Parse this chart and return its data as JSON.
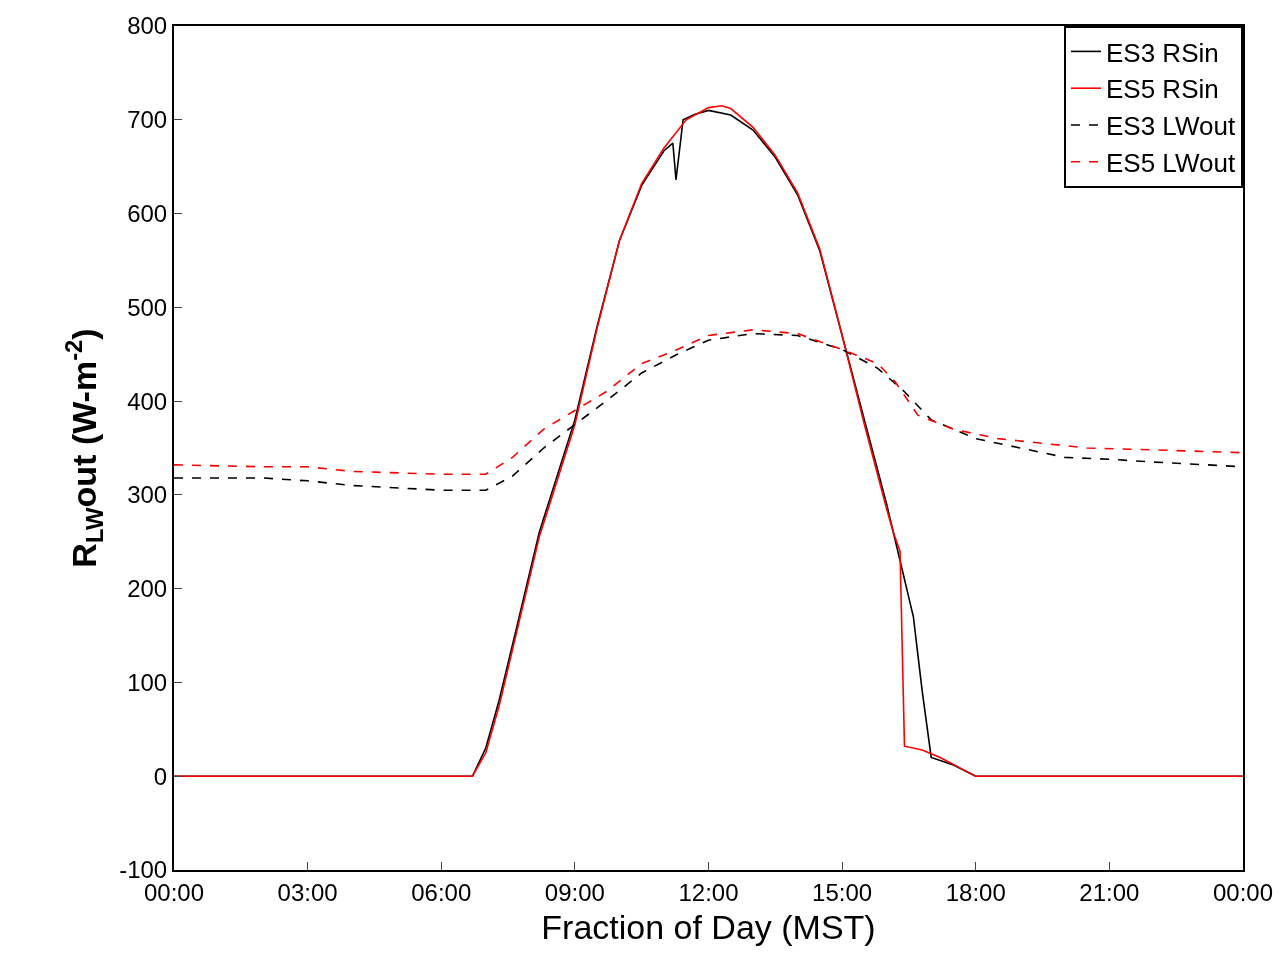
{
  "chart_data": {
    "type": "line",
    "xlabel": "Fraction of Day (MST)",
    "ylabel": "R$_{LW}$out (W-m$^{-2}$)",
    "xlim": [
      0,
      24
    ],
    "ylim": [
      -100,
      800
    ],
    "xticks": [
      {
        "value": 0,
        "label": "00:00"
      },
      {
        "value": 3,
        "label": "03:00"
      },
      {
        "value": 6,
        "label": "06:00"
      },
      {
        "value": 9,
        "label": "09:00"
      },
      {
        "value": 12,
        "label": "12:00"
      },
      {
        "value": 15,
        "label": "15:00"
      },
      {
        "value": 18,
        "label": "18:00"
      },
      {
        "value": 21,
        "label": "21:00"
      },
      {
        "value": 24,
        "label": "00:00"
      }
    ],
    "yticks": [
      -100,
      0,
      100,
      200,
      300,
      400,
      500,
      600,
      700,
      800
    ],
    "grid": false,
    "legend": "top right",
    "marker": "none",
    "series": [
      {
        "name": "ES3 RSin",
        "color": "#000000",
        "line_style": "solid",
        "x": [
          0,
          3,
          6,
          6.7,
          7,
          7.3,
          7.7,
          8.2,
          9,
          9.5,
          10,
          10.5,
          11,
          11.2,
          11.27,
          11.43,
          11.7,
          12,
          12.5,
          13,
          13.5,
          14,
          14.5,
          15,
          15.5,
          16,
          16.3,
          16.6,
          16.8,
          17,
          17.5,
          18,
          21,
          24
        ],
        "values": [
          0,
          0,
          0,
          0,
          30,
          81,
          160,
          260,
          380,
          480,
          571,
          630,
          667,
          675,
          636,
          700,
          706,
          710,
          705,
          689,
          660,
          620,
          560,
          470,
          380,
          290,
          230,
          170,
          90,
          20,
          12,
          0,
          0,
          0
        ]
      },
      {
        "name": "ES5 RSin",
        "color": "#ff0000",
        "line_style": "solid",
        "x": [
          0,
          3,
          6,
          6.7,
          7,
          7.3,
          7.7,
          8.2,
          9,
          9.5,
          10,
          10.5,
          11,
          11.5,
          12,
          12.3,
          12.5,
          13,
          13.5,
          14,
          14.5,
          15,
          15.5,
          16,
          16.15,
          16.3,
          16.4,
          16.8,
          17.2,
          17.6,
          18,
          21,
          24
        ],
        "values": [
          0,
          0,
          0,
          0,
          25,
          75,
          155,
          255,
          375,
          478,
          571,
          632,
          670,
          700,
          713,
          715,
          712,
          692,
          662,
          622,
          562,
          470,
          375,
          285,
          260,
          240,
          32,
          28,
          20,
          10,
          0,
          0,
          0
        ]
      },
      {
        "name": "ES3 LWout",
        "color": "#000000",
        "line_style": "dashed",
        "x": [
          0,
          2,
          3,
          4,
          6,
          7,
          7.6,
          8.3,
          9,
          9.7,
          10.5,
          11.3,
          12,
          13,
          14,
          15,
          15.8,
          16.4,
          17,
          18,
          19,
          20,
          21,
          22,
          24
        ],
        "values": [
          318,
          318,
          315,
          310,
          305,
          305,
          320,
          350,
          375,
          400,
          430,
          450,
          465,
          472,
          470,
          455,
          435,
          410,
          380,
          360,
          350,
          340,
          338,
          335,
          330
        ]
      },
      {
        "name": "ES5 LWout",
        "color": "#ff0000",
        "line_style": "dashed",
        "x": [
          0,
          2,
          3,
          4,
          6,
          7,
          7.6,
          8.3,
          9,
          9.7,
          10.5,
          11.3,
          12,
          13,
          14,
          15,
          15.8,
          16.2,
          16.7,
          17.5,
          18.5,
          19.5,
          20.5,
          22,
          24
        ],
        "values": [
          332,
          330,
          330,
          325,
          322,
          322,
          340,
          370,
          390,
          410,
          440,
          455,
          470,
          476,
          472,
          455,
          440,
          420,
          385,
          370,
          360,
          355,
          350,
          348,
          345
        ]
      }
    ]
  }
}
